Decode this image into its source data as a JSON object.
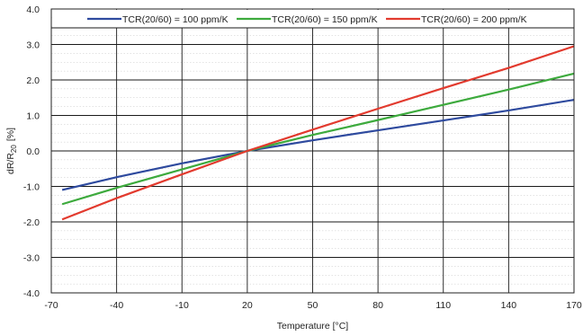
{
  "chart_data": {
    "type": "line",
    "title": "",
    "xlabel": "Temperature [°C]",
    "ylabel": {
      "main": "dR/R",
      "sub": "20",
      "unit": "[%]"
    },
    "xlim": [
      -70,
      170
    ],
    "ylim": [
      -4.0,
      4.0
    ],
    "x_ticks": [
      -70,
      -40,
      -10,
      20,
      50,
      80,
      110,
      140,
      170
    ],
    "x_tick_labels": [
      "-70",
      "-40",
      "-10",
      "20",
      "50",
      "80",
      "110",
      "140",
      "170"
    ],
    "y_ticks": [
      -4.0,
      -3.0,
      -2.0,
      -1.0,
      0.0,
      1.0,
      2.0,
      3.0,
      4.0
    ],
    "y_tick_labels": [
      "-4.0",
      "-3.0",
      "-2.0",
      "-1.0",
      "0.0",
      "1.0",
      "2.0",
      "3.0",
      "4.0"
    ],
    "grid": true,
    "legend_position": "top",
    "series": [
      {
        "name": "TCR(20/60) = 100 ppm/K",
        "color": "#2e4a9e",
        "x": [
          -65,
          -40,
          -10,
          20,
          50,
          80,
          110,
          140,
          170
        ],
        "y": [
          -1.1,
          -0.74,
          -0.35,
          0.0,
          0.3,
          0.58,
          0.86,
          1.14,
          1.44
        ]
      },
      {
        "name": "TCR(20/60) = 150 ppm/K",
        "color": "#3daa3d",
        "x": [
          -65,
          -40,
          -10,
          20,
          50,
          80,
          110,
          140,
          170
        ],
        "y": [
          -1.5,
          -1.04,
          -0.52,
          0.0,
          0.45,
          0.87,
          1.3,
          1.73,
          2.18
        ]
      },
      {
        "name": "TCR(20/60) = 200 ppm/K",
        "color": "#e23a2e",
        "x": [
          -65,
          -40,
          -10,
          20,
          50,
          80,
          110,
          140,
          170
        ],
        "y": [
          -1.93,
          -1.33,
          -0.66,
          0.0,
          0.6,
          1.19,
          1.77,
          2.34,
          2.95
        ]
      }
    ]
  }
}
